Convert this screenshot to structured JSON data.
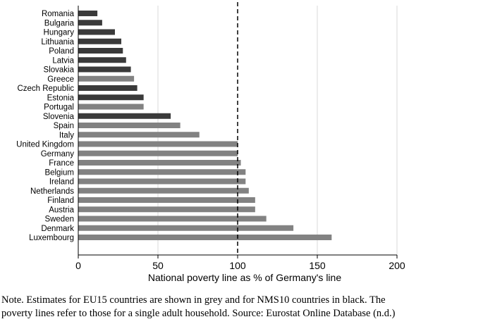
{
  "chart_data": {
    "type": "bar",
    "orientation": "horizontal",
    "xlabel": "National poverty line as % of Germany's line",
    "ylabel": "",
    "xlim": [
      0,
      200
    ],
    "xticks": [
      0,
      50,
      100,
      150,
      200
    ],
    "grid": "vertical",
    "reference_line": 100,
    "categories": [
      "Romania",
      "Bulgaria",
      "Hungary",
      "Lithuania",
      "Poland",
      "Latvia",
      "Slovakia",
      "Greece",
      "Czech Republic",
      "Estonia",
      "Portugal",
      "Slovenia",
      "Spain",
      "Italy",
      "United Kingdom",
      "Germany",
      "France",
      "Belgium",
      "Ireland",
      "Netherlands",
      "Finland",
      "Austria",
      "Sweden",
      "Denmark",
      "Luxembourg"
    ],
    "values": [
      12,
      15,
      23,
      27,
      28,
      30,
      33,
      35,
      37,
      41,
      41,
      58,
      64,
      76,
      100,
      100,
      102,
      105,
      105,
      107,
      111,
      111,
      118,
      135,
      159
    ],
    "groups": [
      "NMS10",
      "NMS10",
      "NMS10",
      "NMS10",
      "NMS10",
      "NMS10",
      "NMS10",
      "EU15",
      "NMS10",
      "NMS10",
      "EU15",
      "NMS10",
      "EU15",
      "EU15",
      "EU15",
      "EU15",
      "EU15",
      "EU15",
      "EU15",
      "EU15",
      "EU15",
      "EU15",
      "EU15",
      "EU15",
      "EU15"
    ],
    "colors": {
      "EU15": "#828282",
      "NMS10": "#3a3a3a",
      "grid": "#d9d9d9",
      "axis": "#000000"
    }
  },
  "note": {
    "line1": "Note. Estimates for EU15 countries are shown in grey and for NMS10 countries in black. The",
    "line2": "poverty lines refer to those for a single adult household. Source: Eurostat Online Database (n.d.)"
  }
}
